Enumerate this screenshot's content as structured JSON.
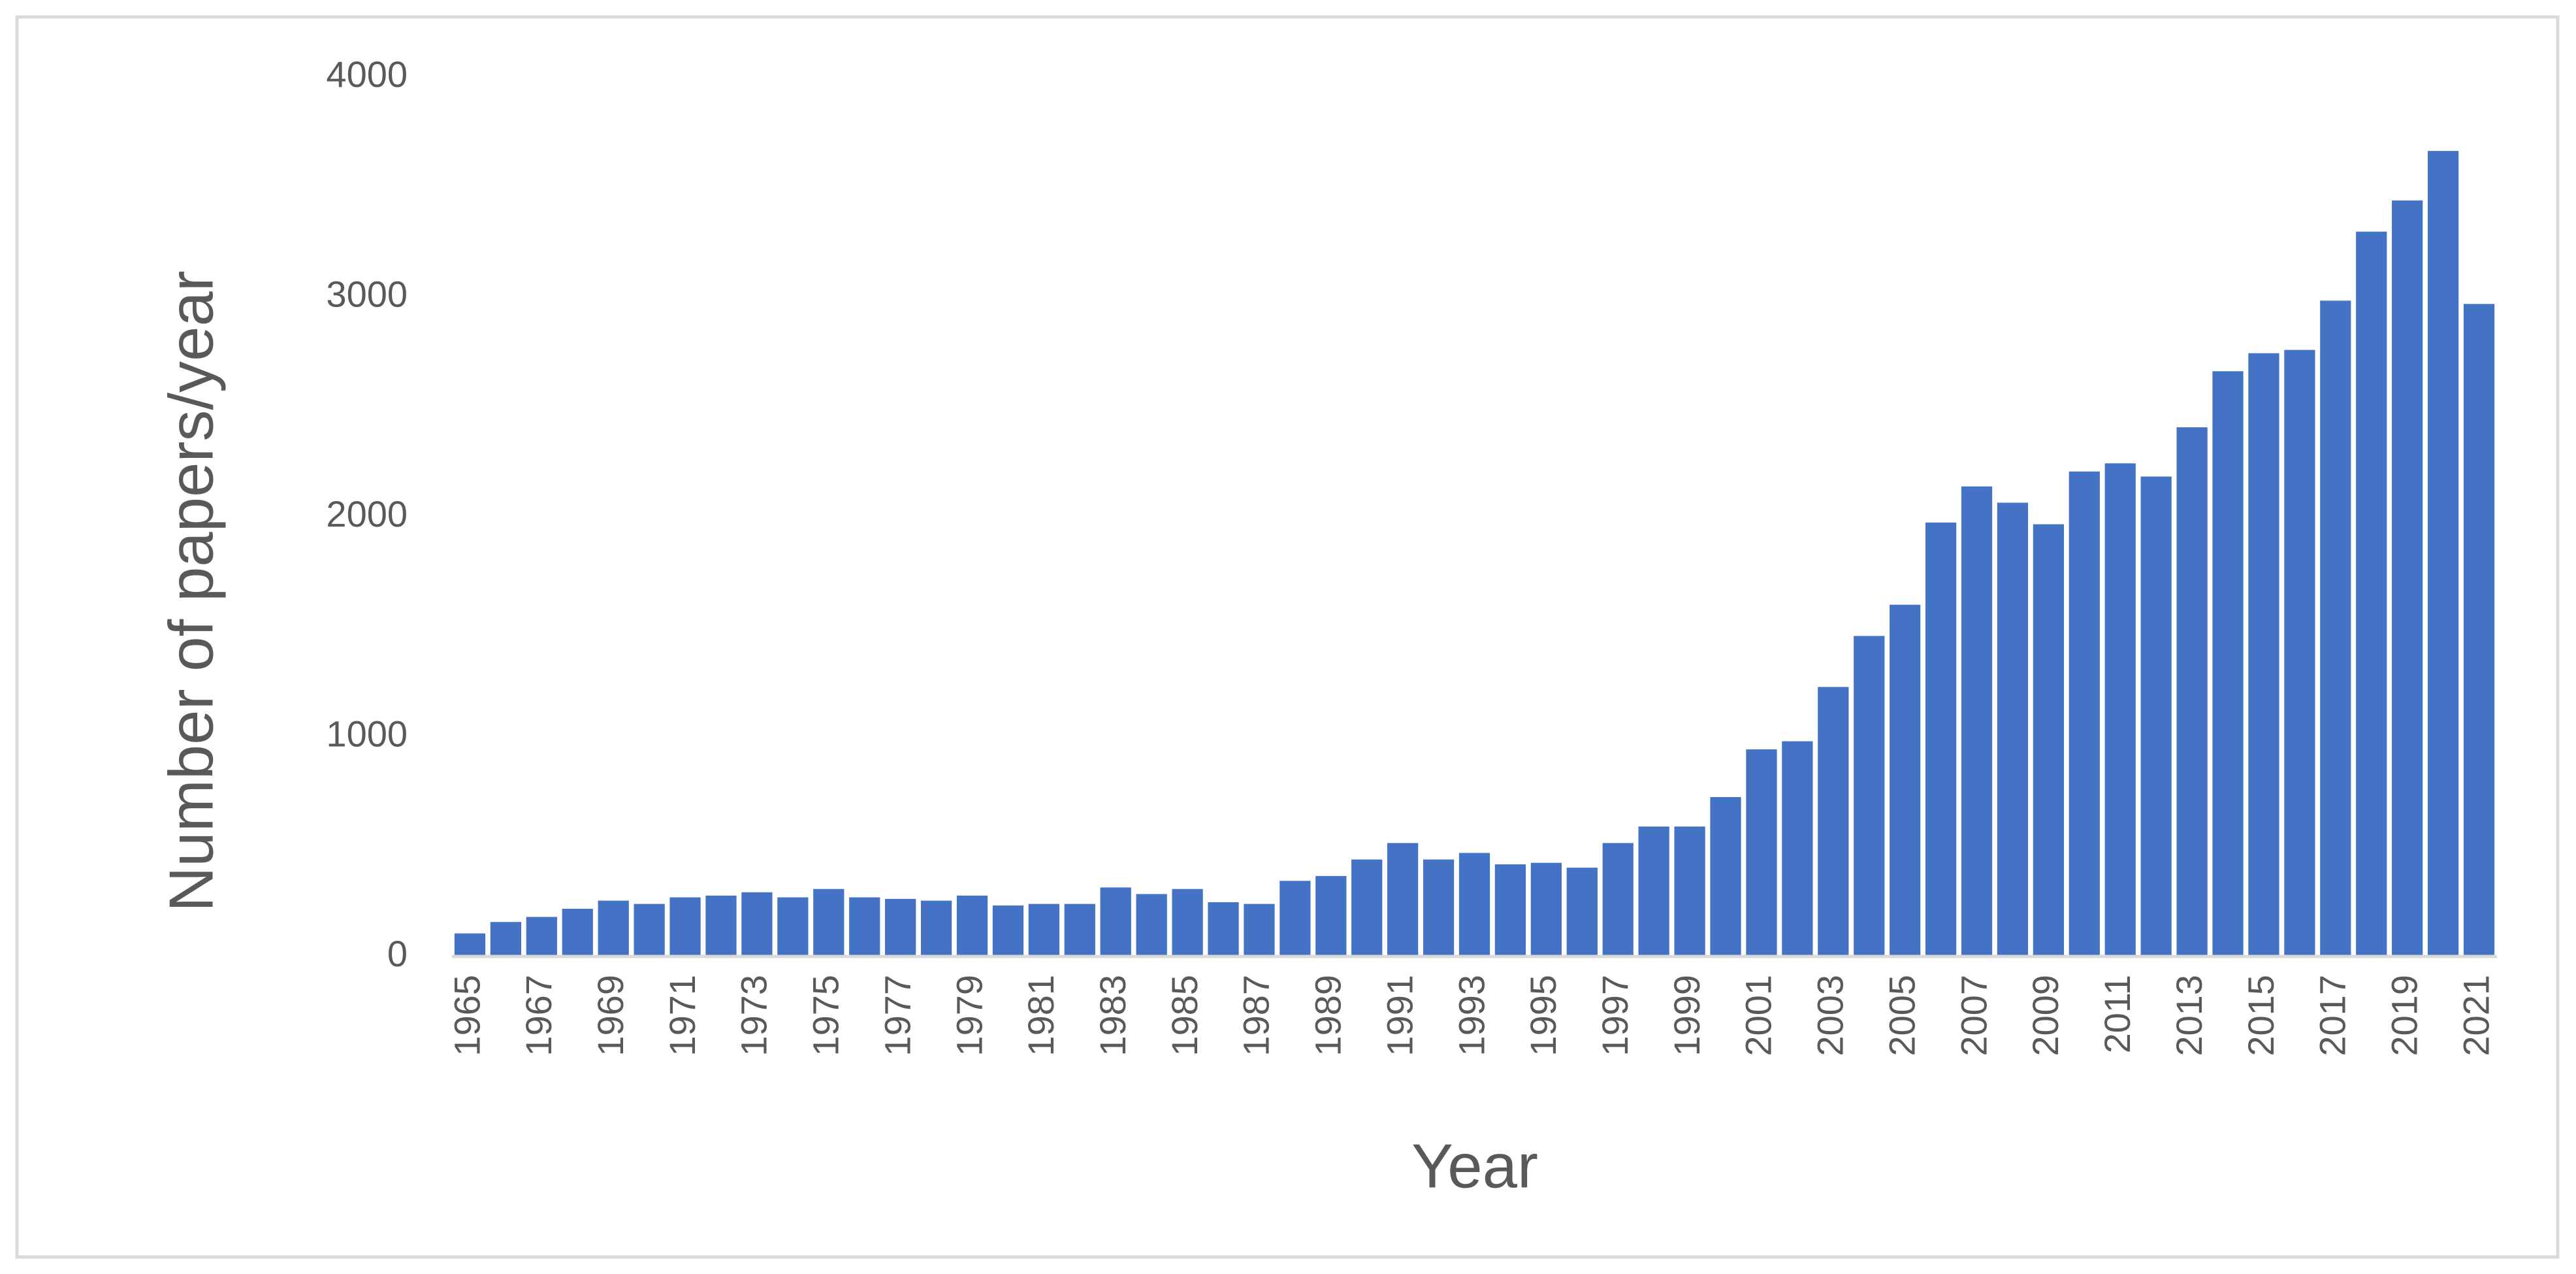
{
  "chart_data": {
    "type": "bar",
    "x_label": "Year",
    "y_label": "Number of papers/year",
    "categories": [
      "1965",
      null,
      "1967",
      null,
      "1969",
      null,
      "1971",
      null,
      "1973",
      null,
      "1975",
      null,
      "1977",
      null,
      "1979",
      null,
      "1981",
      null,
      "1983",
      null,
      "1985",
      null,
      "1987",
      null,
      "1989",
      null,
      "1991",
      null,
      "1993",
      null,
      "1995",
      null,
      "1997",
      null,
      "1999",
      null,
      "2001",
      null,
      "2003",
      null,
      "2005",
      null,
      "2007",
      null,
      "2009",
      null,
      "2011",
      null,
      "2013",
      null,
      "2015",
      null,
      "2017",
      null,
      "2019",
      null,
      "2021"
    ],
    "values": [
      105,
      157,
      180,
      217,
      254,
      239,
      269,
      277,
      292,
      269,
      307,
      269,
      262,
      254,
      277,
      232,
      239,
      239,
      314,
      284,
      307,
      247,
      239,
      344,
      366,
      441,
      516,
      441,
      471,
      419,
      426,
      404,
      516,
      591,
      591,
      725,
      942,
      979,
      1226,
      1458,
      1600,
      1974,
      2138,
      2064,
      1966,
      2206,
      2243,
      2183,
      2407,
      2662,
      2744,
      2759,
      2983,
      3297,
      3439,
      3664,
      2968
    ],
    "color": "#4472c4",
    "ylim": [
      0,
      4000
    ],
    "yticks": [
      0,
      1000,
      2000,
      3000,
      4000
    ],
    "grid": false
  }
}
